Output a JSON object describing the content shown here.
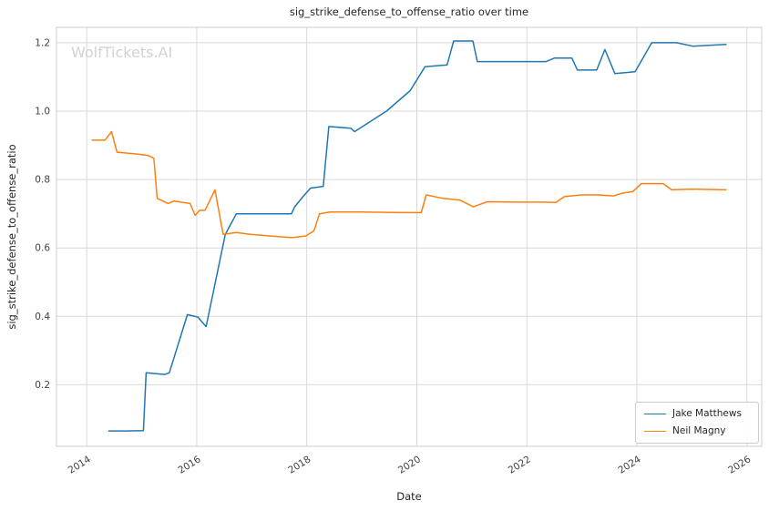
{
  "watermark": "WolfTickets.AI",
  "chart_data": {
    "type": "line",
    "title": "sig_strike_defense_to_offense_ratio over time",
    "xlabel": "Date",
    "ylabel": "sig_strike_defense_to_offense_ratio",
    "xlim": [
      2013.45,
      2026.27
    ],
    "ylim": [
      0.02,
      1.245
    ],
    "xticks": [
      2014,
      2016,
      2018,
      2020,
      2022,
      2024,
      2026
    ],
    "yticks": [
      0.2,
      0.4,
      0.6,
      0.8,
      1.0,
      1.2
    ],
    "grid": true,
    "legend_position": "lower right",
    "colors": {
      "grid": "#d9d9d9",
      "spine": "#cccccc",
      "text": "#262626",
      "tick_text": "#404040",
      "watermark": "#d2d2d2"
    },
    "series": [
      {
        "name": "Jake Matthews",
        "color": "#1f77b4",
        "points": [
          [
            2014.4,
            0.065
          ],
          [
            2014.72,
            0.065
          ],
          [
            2015.03,
            0.066
          ],
          [
            2015.08,
            0.235
          ],
          [
            2015.42,
            0.23
          ],
          [
            2015.5,
            0.235
          ],
          [
            2015.83,
            0.405
          ],
          [
            2016.02,
            0.398
          ],
          [
            2016.17,
            0.37
          ],
          [
            2016.52,
            0.64
          ],
          [
            2016.72,
            0.7
          ],
          [
            2017.05,
            0.7
          ],
          [
            2017.5,
            0.7
          ],
          [
            2017.72,
            0.7
          ],
          [
            2017.78,
            0.72
          ],
          [
            2017.93,
            0.75
          ],
          [
            2018.07,
            0.775
          ],
          [
            2018.3,
            0.78
          ],
          [
            2018.4,
            0.955
          ],
          [
            2018.8,
            0.95
          ],
          [
            2018.87,
            0.94
          ],
          [
            2019.45,
            1.0
          ],
          [
            2019.88,
            1.06
          ],
          [
            2020.15,
            1.13
          ],
          [
            2020.55,
            1.135
          ],
          [
            2020.67,
            1.205
          ],
          [
            2021.02,
            1.205
          ],
          [
            2021.1,
            1.145
          ],
          [
            2021.55,
            1.145
          ],
          [
            2022.35,
            1.145
          ],
          [
            2022.5,
            1.155
          ],
          [
            2022.82,
            1.155
          ],
          [
            2022.92,
            1.12
          ],
          [
            2023.27,
            1.12
          ],
          [
            2023.42,
            1.18
          ],
          [
            2023.6,
            1.11
          ],
          [
            2023.97,
            1.115
          ],
          [
            2024.27,
            1.2
          ],
          [
            2024.72,
            1.2
          ],
          [
            2025.02,
            1.19
          ],
          [
            2025.62,
            1.195
          ]
        ]
      },
      {
        "name": "Neil Magny",
        "color": "#ff7f0e",
        "points": [
          [
            2014.1,
            0.915
          ],
          [
            2014.33,
            0.915
          ],
          [
            2014.45,
            0.94
          ],
          [
            2014.55,
            0.88
          ],
          [
            2014.88,
            0.875
          ],
          [
            2015.12,
            0.87
          ],
          [
            2015.22,
            0.862
          ],
          [
            2015.28,
            0.745
          ],
          [
            2015.48,
            0.73
          ],
          [
            2015.58,
            0.737
          ],
          [
            2015.88,
            0.73
          ],
          [
            2015.97,
            0.695
          ],
          [
            2016.05,
            0.71
          ],
          [
            2016.15,
            0.71
          ],
          [
            2016.33,
            0.77
          ],
          [
            2016.48,
            0.64
          ],
          [
            2016.72,
            0.645
          ],
          [
            2016.97,
            0.64
          ],
          [
            2017.27,
            0.636
          ],
          [
            2017.73,
            0.63
          ],
          [
            2017.98,
            0.635
          ],
          [
            2018.13,
            0.65
          ],
          [
            2018.23,
            0.7
          ],
          [
            2018.42,
            0.705
          ],
          [
            2019.0,
            0.705
          ],
          [
            2019.55,
            0.704
          ],
          [
            2020.08,
            0.703
          ],
          [
            2020.17,
            0.755
          ],
          [
            2020.48,
            0.745
          ],
          [
            2020.78,
            0.74
          ],
          [
            2021.03,
            0.72
          ],
          [
            2021.28,
            0.735
          ],
          [
            2021.78,
            0.734
          ],
          [
            2022.28,
            0.734
          ],
          [
            2022.53,
            0.733
          ],
          [
            2022.68,
            0.75
          ],
          [
            2022.98,
            0.755
          ],
          [
            2023.32,
            0.755
          ],
          [
            2023.58,
            0.752
          ],
          [
            2023.73,
            0.76
          ],
          [
            2023.93,
            0.765
          ],
          [
            2024.08,
            0.788
          ],
          [
            2024.48,
            0.788
          ],
          [
            2024.63,
            0.77
          ],
          [
            2024.98,
            0.772
          ],
          [
            2025.62,
            0.77
          ]
        ]
      }
    ]
  }
}
